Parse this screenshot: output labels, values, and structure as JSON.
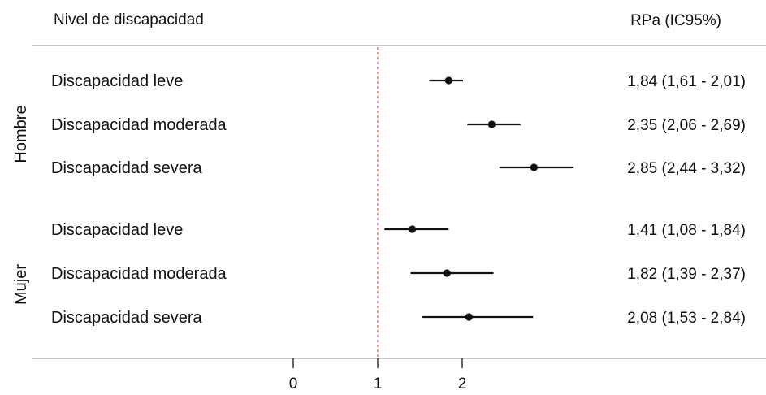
{
  "chart_data": {
    "type": "forest",
    "headers": {
      "left": "Nivel de discapacidad",
      "right": "RPa (IC95%)"
    },
    "reference_line": 1,
    "xlim": [
      0,
      3.8
    ],
    "xticks": [
      "0",
      "1",
      "2"
    ],
    "groups": [
      {
        "name": "Hombre",
        "rows": [
          {
            "label": "Discapacidad leve",
            "estimate": 1.84,
            "lower": 1.61,
            "upper": 2.01,
            "text": "1,84 (1,61 - 2,01)"
          },
          {
            "label": "Discapacidad moderada",
            "estimate": 2.35,
            "lower": 2.06,
            "upper": 2.69,
            "text": "2,35 (2,06 - 2,69)"
          },
          {
            "label": "Discapacidad severa",
            "estimate": 2.85,
            "lower": 2.44,
            "upper": 3.32,
            "text": "2,85 (2,44 - 3,32)"
          }
        ]
      },
      {
        "name": "Mujer",
        "rows": [
          {
            "label": "Discapacidad leve",
            "estimate": 1.41,
            "lower": 1.08,
            "upper": 1.84,
            "text": "1,41 (1,08 - 1,84)"
          },
          {
            "label": "Discapacidad moderada",
            "estimate": 1.82,
            "lower": 1.39,
            "upper": 2.37,
            "text": "1,82 (1,39 - 2,37)"
          },
          {
            "label": "Discapacidad severa",
            "estimate": 2.08,
            "lower": 1.53,
            "upper": 2.84,
            "text": "2,08 (1,53 - 2,84)"
          }
        ]
      }
    ],
    "colors": {
      "point": "#111111",
      "line": "#111111",
      "reference": "#d9534f",
      "rule": "#b0b0b0",
      "axis": "#333333"
    }
  }
}
